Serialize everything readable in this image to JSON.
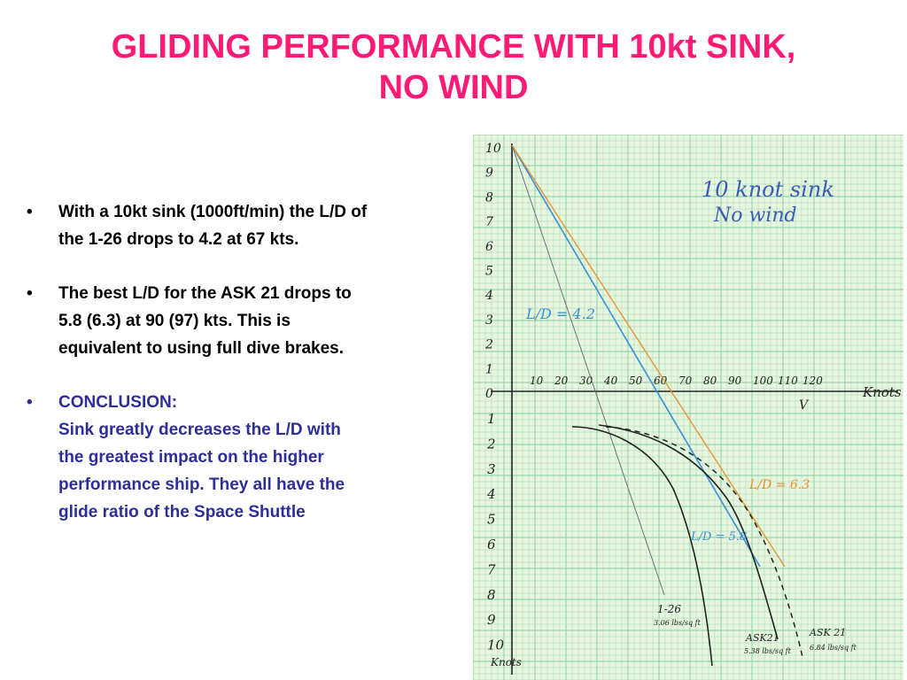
{
  "slide": {
    "title_lines": [
      "GLIDING PERFORMANCE WITH 10kt SINK,",
      "NO WIND"
    ],
    "title_color": "#ff1a75",
    "bullet_glyph": "•",
    "bullets": [
      {
        "lines": [
          "With a 10kt sink (1000ft/min) the L/D of",
          "the 1-26 drops to 4.2 at 67 kts."
        ],
        "color": "#000000"
      },
      {
        "lines": [
          "The best L/D for the ASK 21 drops to",
          "5.8 (6.3) at 90 (97) kts. This is",
          "equivalent to using full dive brakes."
        ],
        "color": "#000000"
      },
      {
        "lines": [
          "CONCLUSION:",
          "Sink greatly decreases the L/D with",
          "the greatest impact on the higher",
          "performance ship. They all have the",
          "glide ratio of the Space Shuttle"
        ],
        "color": "#2e2e9a"
      }
    ]
  },
  "graph": {
    "paper_color": "#e8f5df",
    "grid_color": "#7fcf9e",
    "handwritten_note_lines": [
      "10 knot sink",
      "No wind"
    ],
    "y_axis_upper_labels": [
      "10",
      "9",
      "8",
      "7",
      "6",
      "5",
      "4",
      "3",
      "2",
      "1",
      "0"
    ],
    "y_axis_lower_labels": [
      "1",
      "2",
      "3",
      "4",
      "5",
      "6",
      "7",
      "8",
      "9",
      "10"
    ],
    "x_axis_labels": [
      "10",
      "20",
      "30",
      "40",
      "50",
      "60",
      "70",
      "80",
      "90",
      "100",
      "110",
      "120"
    ],
    "x_axis_name": "Knots",
    "x_axis_symbol": "V",
    "y_axis_name": "Knots",
    "annotations": {
      "ld_1_26": "L/D = 4.2",
      "ld_ask21_blue": "L/D = 5.8",
      "ld_ask21_orange": "L/D = 6.3",
      "polar_1_26": [
        "1-26",
        "3.06 lbs/sq ft"
      ],
      "polar_ask21_a": [
        "ASK21",
        "5.38 lbs/sq ft"
      ],
      "polar_ask21_b": [
        "ASK 21",
        "6.84 lbs/sq ft"
      ]
    },
    "colors": {
      "ink": "#222222",
      "blue_line": "#3a8fd8",
      "orange_line": "#e8902a",
      "gray_line": "#6b7280",
      "note_ink": "#3b5bb5"
    }
  }
}
